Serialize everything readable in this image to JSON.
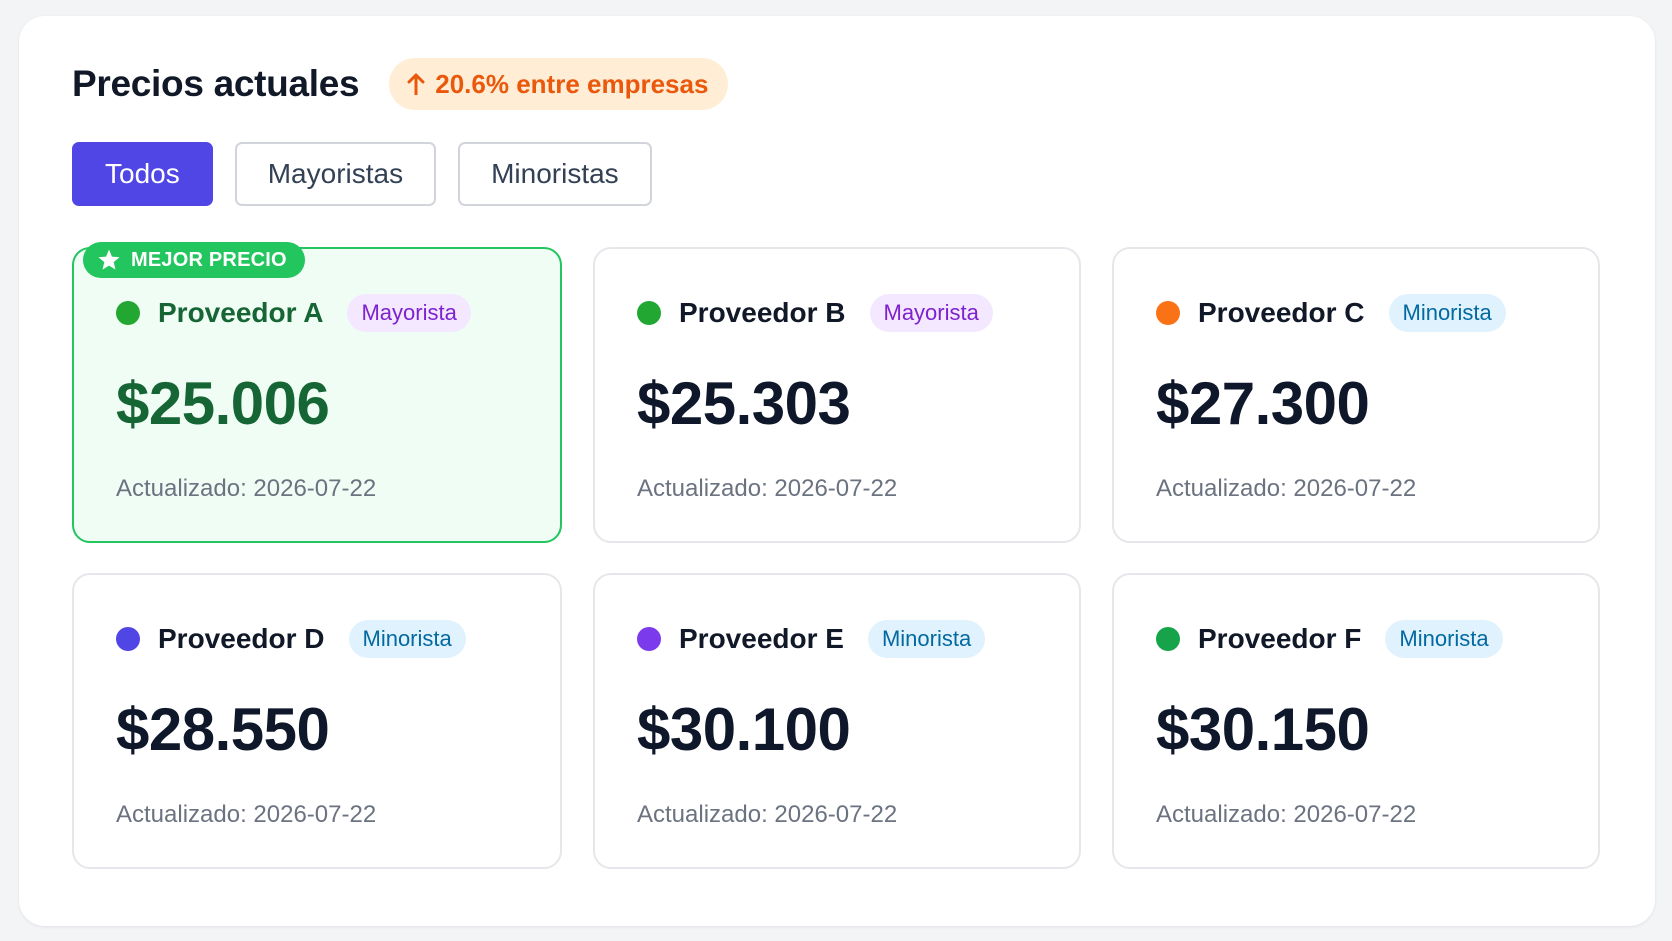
{
  "header": {
    "title": "Precios actuales",
    "trend": {
      "label": "20.6% entre empresas",
      "icon": "arrow-up-icon",
      "color": "#ea580c"
    }
  },
  "tabs": [
    {
      "label": "Todos",
      "active": true
    },
    {
      "label": "Mayoristas",
      "active": false
    },
    {
      "label": "Minoristas",
      "active": false
    }
  ],
  "best_badge": {
    "label": "MEJOR PRECIO",
    "icon": "star-icon"
  },
  "providers": [
    {
      "name": "Proveedor A",
      "type": "Mayorista",
      "price": "$25.006",
      "updated": "Actualizado: 2026-07-22",
      "dot_color": "#22a832",
      "best": true
    },
    {
      "name": "Proveedor B",
      "type": "Mayorista",
      "price": "$25.303",
      "updated": "Actualizado: 2026-07-22",
      "dot_color": "#22a832",
      "best": false
    },
    {
      "name": "Proveedor C",
      "type": "Minorista",
      "price": "$27.300",
      "updated": "Actualizado: 2026-07-22",
      "dot_color": "#f97316",
      "best": false
    },
    {
      "name": "Proveedor D",
      "type": "Minorista",
      "price": "$28.550",
      "updated": "Actualizado: 2026-07-22",
      "dot_color": "#4f46e5",
      "best": false
    },
    {
      "name": "Proveedor E",
      "type": "Minorista",
      "price": "$30.100",
      "updated": "Actualizado: 2026-07-22",
      "dot_color": "#7c3aed",
      "best": false
    },
    {
      "name": "Proveedor F",
      "type": "Minorista",
      "price": "$30.150",
      "updated": "Actualizado: 2026-07-22",
      "dot_color": "#16a34a",
      "best": false
    }
  ],
  "colors": {
    "accent": "#4f46e5",
    "best_border": "#22c55e",
    "best_text": "#166534"
  }
}
